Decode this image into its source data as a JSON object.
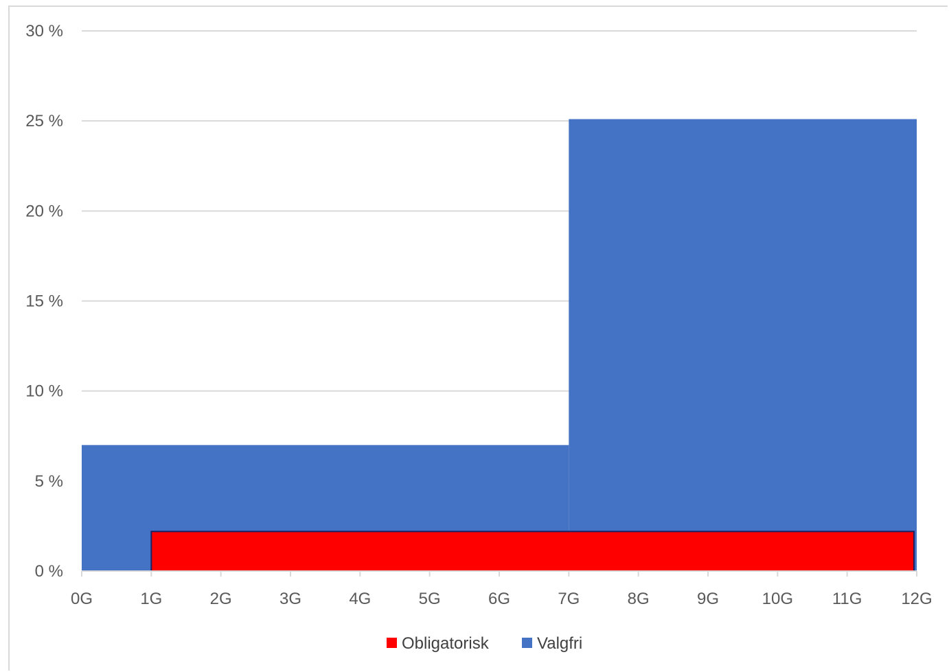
{
  "chart_data": {
    "type": "area",
    "x": [
      "0G",
      "1G",
      "2G",
      "3G",
      "4G",
      "5G",
      "6G",
      "7G",
      "8G",
      "9G",
      "10G",
      "11G",
      "12G"
    ],
    "x_numeric": [
      0,
      12
    ],
    "y_ticks": [
      "0 %",
      "5 %",
      "10 %",
      "15 %",
      "20 %",
      "25 %",
      "30 %"
    ],
    "ylim": [
      0,
      30
    ],
    "grid": true,
    "legend_position": "bottom",
    "series": [
      {
        "name": "Valgfri",
        "color": "#4472c4",
        "steps": [
          {
            "from": 0,
            "to": 7,
            "value": 7
          },
          {
            "from": 7,
            "to": 12,
            "value": 25.1
          }
        ]
      },
      {
        "name": "Obligatorisk",
        "color": "#ff0000",
        "border": "#1f1f5f",
        "steps": [
          {
            "from": 1,
            "to": 12,
            "value": 2.2
          }
        ]
      }
    ],
    "legend": [
      {
        "name": "Obligatorisk",
        "color": "#ff0000"
      },
      {
        "name": "Valgfri",
        "color": "#4472c4"
      }
    ]
  }
}
